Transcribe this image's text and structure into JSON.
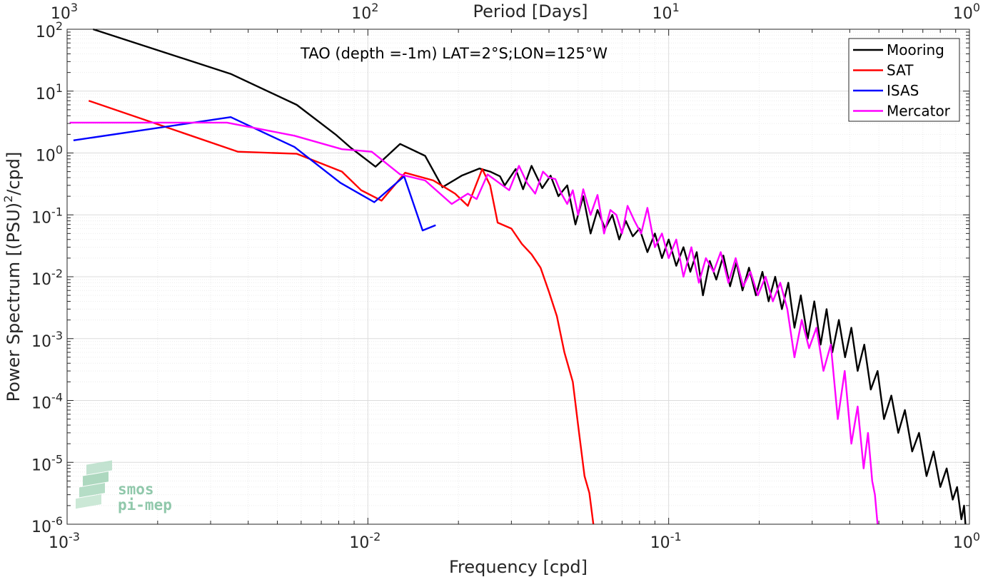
{
  "chart_data": {
    "type": "line",
    "title": "TAO (depth =-1m) LAT=2°S;LON=125°W",
    "xlabel": "Frequency [cpd]",
    "ylabel": "Power Spectrum [(PSU)²/cpd]",
    "ylabel_parts": {
      "pre": "Power Spectrum [(PSU)",
      "sup": "2",
      "post": "/cpd]"
    },
    "top_xlabel": "Period [Days]",
    "xscale": "log",
    "yscale": "log",
    "xlim": [
      0.001,
      1
    ],
    "ylim": [
      1e-06,
      100
    ],
    "grid": true,
    "legend_position": "top-right",
    "x_ticks": [
      {
        "value": 0.001,
        "base": "10",
        "exp": "-3"
      },
      {
        "value": 0.01,
        "base": "10",
        "exp": "-2"
      },
      {
        "value": 0.1,
        "base": "10",
        "exp": "-1"
      },
      {
        "value": 1,
        "base": "10",
        "exp": "0"
      }
    ],
    "top_ticks": [
      {
        "value": 0.001,
        "base": "10",
        "exp": "3"
      },
      {
        "value": 0.01,
        "base": "10",
        "exp": "2"
      },
      {
        "value": 0.1,
        "base": "10",
        "exp": "1"
      },
      {
        "value": 1,
        "base": "10",
        "exp": "0"
      }
    ],
    "y_ticks": [
      {
        "value": 100,
        "base": "10",
        "exp": "2"
      },
      {
        "value": 10,
        "base": "10",
        "exp": "1"
      },
      {
        "value": 1,
        "base": "10",
        "exp": "0"
      },
      {
        "value": 0.1,
        "base": "10",
        "exp": "-1"
      },
      {
        "value": 0.01,
        "base": "10",
        "exp": "-2"
      },
      {
        "value": 0.001,
        "base": "10",
        "exp": "-3"
      },
      {
        "value": 0.0001,
        "base": "10",
        "exp": "-4"
      },
      {
        "value": 1e-05,
        "base": "10",
        "exp": "-5"
      },
      {
        "value": 1e-06,
        "base": "10",
        "exp": "-6"
      }
    ],
    "series": [
      {
        "name": "Mooring",
        "color": "#000000",
        "points": [
          [
            0.00122,
            100
          ],
          [
            0.0035,
            19
          ],
          [
            0.0058,
            6
          ],
          [
            0.0078,
            2
          ],
          [
            0.0088,
            1.2
          ],
          [
            0.0106,
            0.6
          ],
          [
            0.0128,
            1.4
          ],
          [
            0.0155,
            0.9
          ],
          [
            0.0177,
            0.28
          ],
          [
            0.0205,
            0.43
          ],
          [
            0.0235,
            0.56
          ],
          [
            0.0255,
            0.5
          ],
          [
            0.0275,
            0.42
          ],
          [
            0.0285,
            0.3
          ],
          [
            0.031,
            0.55
          ],
          [
            0.0328,
            0.26
          ],
          [
            0.035,
            0.62
          ],
          [
            0.038,
            0.27
          ],
          [
            0.0405,
            0.43
          ],
          [
            0.043,
            0.2
          ],
          [
            0.046,
            0.3
          ],
          [
            0.049,
            0.07
          ],
          [
            0.052,
            0.2
          ],
          [
            0.055,
            0.05
          ],
          [
            0.058,
            0.12
          ],
          [
            0.0615,
            0.06
          ],
          [
            0.065,
            0.1
          ],
          [
            0.0685,
            0.04
          ],
          [
            0.072,
            0.08
          ],
          [
            0.076,
            0.045
          ],
          [
            0.08,
            0.06
          ],
          [
            0.085,
            0.025
          ],
          [
            0.09,
            0.05
          ],
          [
            0.095,
            0.02
          ],
          [
            0.1,
            0.04
          ],
          [
            0.106,
            0.015
          ],
          [
            0.112,
            0.03
          ],
          [
            0.118,
            0.012
          ],
          [
            0.124,
            0.025
          ],
          [
            0.13,
            0.005
          ],
          [
            0.137,
            0.018
          ],
          [
            0.144,
            0.009
          ],
          [
            0.152,
            0.022
          ],
          [
            0.16,
            0.007
          ],
          [
            0.168,
            0.017
          ],
          [
            0.176,
            0.006
          ],
          [
            0.185,
            0.014
          ],
          [
            0.195,
            0.005
          ],
          [
            0.205,
            0.012
          ],
          [
            0.215,
            0.004
          ],
          [
            0.226,
            0.01
          ],
          [
            0.238,
            0.003
          ],
          [
            0.25,
            0.008
          ],
          [
            0.262,
            0.0015
          ],
          [
            0.275,
            0.005
          ],
          [
            0.29,
            0.001
          ],
          [
            0.305,
            0.004
          ],
          [
            0.32,
            0.0008
          ],
          [
            0.335,
            0.003
          ],
          [
            0.35,
            0.0006
          ],
          [
            0.368,
            0.002
          ],
          [
            0.386,
            0.0005
          ],
          [
            0.405,
            0.0015
          ],
          [
            0.425,
            0.0003
          ],
          [
            0.447,
            0.0008
          ],
          [
            0.47,
            0.00015
          ],
          [
            0.495,
            0.0003
          ],
          [
            0.52,
            5e-05
          ],
          [
            0.55,
            0.00012
          ],
          [
            0.58,
            3e-05
          ],
          [
            0.61,
            7e-05
          ],
          [
            0.645,
            1.5e-05
          ],
          [
            0.68,
            3e-05
          ],
          [
            0.72,
            6e-06
          ],
          [
            0.76,
            1.5e-05
          ],
          [
            0.8,
            4e-06
          ],
          [
            0.84,
            8e-06
          ],
          [
            0.88,
            2.5e-06
          ],
          [
            0.91,
            4e-06
          ],
          [
            0.94,
            1.2e-06
          ],
          [
            0.96,
            2e-06
          ],
          [
            0.97,
            1e-06
          ]
        ]
      },
      {
        "name": "SAT",
        "color": "#ff0000",
        "points": [
          [
            0.00118,
            7
          ],
          [
            0.0037,
            1.05
          ],
          [
            0.0058,
            0.97
          ],
          [
            0.0082,
            0.5
          ],
          [
            0.0095,
            0.25
          ],
          [
            0.0111,
            0.17
          ],
          [
            0.0133,
            0.48
          ],
          [
            0.0165,
            0.36
          ],
          [
            0.0195,
            0.22
          ],
          [
            0.0215,
            0.14
          ],
          [
            0.024,
            0.55
          ],
          [
            0.0255,
            0.3
          ],
          [
            0.027,
            0.075
          ],
          [
            0.03,
            0.06
          ],
          [
            0.0325,
            0.034
          ],
          [
            0.035,
            0.023
          ],
          [
            0.0375,
            0.014
          ],
          [
            0.04,
            0.0057
          ],
          [
            0.0425,
            0.0023
          ],
          [
            0.045,
            0.0006
          ],
          [
            0.048,
            0.0002
          ],
          [
            0.05,
            4e-05
          ],
          [
            0.0525,
            6e-06
          ],
          [
            0.0545,
            3.2e-06
          ],
          [
            0.0562,
            1e-06
          ]
        ]
      },
      {
        "name": "ISAS",
        "color": "#0000ff",
        "points": [
          [
            0.00105,
            1.6
          ],
          [
            0.0035,
            3.8
          ],
          [
            0.0057,
            1.25
          ],
          [
            0.0081,
            0.33
          ],
          [
            0.0105,
            0.16
          ],
          [
            0.0132,
            0.42
          ],
          [
            0.0152,
            0.056
          ],
          [
            0.0168,
            0.068
          ]
        ]
      },
      {
        "name": "Mercator",
        "color": "#ff00ff",
        "points": [
          [
            0.00102,
            3.1
          ],
          [
            0.0034,
            3.1
          ],
          [
            0.0057,
            1.9
          ],
          [
            0.0082,
            1.15
          ],
          [
            0.0103,
            1.05
          ],
          [
            0.0128,
            0.45
          ],
          [
            0.0155,
            0.36
          ],
          [
            0.019,
            0.15
          ],
          [
            0.0215,
            0.22
          ],
          [
            0.023,
            0.18
          ],
          [
            0.025,
            0.45
          ],
          [
            0.0295,
            0.25
          ],
          [
            0.0318,
            0.62
          ],
          [
            0.0338,
            0.33
          ],
          [
            0.036,
            0.22
          ],
          [
            0.0382,
            0.5
          ],
          [
            0.04,
            0.4
          ],
          [
            0.042,
            0.38
          ],
          [
            0.044,
            0.22
          ],
          [
            0.046,
            0.15
          ],
          [
            0.048,
            0.25
          ],
          [
            0.05,
            0.1
          ],
          [
            0.052,
            0.26
          ],
          [
            0.055,
            0.1
          ],
          [
            0.058,
            0.21
          ],
          [
            0.061,
            0.05
          ],
          [
            0.064,
            0.12
          ],
          [
            0.067,
            0.1
          ],
          [
            0.07,
            0.05
          ],
          [
            0.073,
            0.14
          ],
          [
            0.077,
            0.08
          ],
          [
            0.081,
            0.05
          ],
          [
            0.085,
            0.13
          ],
          [
            0.09,
            0.03
          ],
          [
            0.095,
            0.05
          ],
          [
            0.1,
            0.02
          ],
          [
            0.106,
            0.04
          ],
          [
            0.112,
            0.01
          ],
          [
            0.119,
            0.03
          ],
          [
            0.126,
            0.008
          ],
          [
            0.133,
            0.02
          ],
          [
            0.141,
            0.012
          ],
          [
            0.149,
            0.025
          ],
          [
            0.158,
            0.008
          ],
          [
            0.167,
            0.02
          ],
          [
            0.177,
            0.007
          ],
          [
            0.187,
            0.012
          ],
          [
            0.198,
            0.005
          ],
          [
            0.21,
            0.01
          ],
          [
            0.222,
            0.004
          ],
          [
            0.235,
            0.008
          ],
          [
            0.248,
            0.003
          ],
          [
            0.262,
            0.0005
          ],
          [
            0.277,
            0.002
          ],
          [
            0.293,
            0.0007
          ],
          [
            0.31,
            0.0015
          ],
          [
            0.327,
            0.0003
          ],
          [
            0.346,
            0.0008
          ],
          [
            0.365,
            5e-05
          ],
          [
            0.385,
            0.0003
          ],
          [
            0.405,
            2e-05
          ],
          [
            0.425,
            8e-05
          ],
          [
            0.445,
            8e-06
          ],
          [
            0.46,
            3e-05
          ],
          [
            0.475,
            5e-06
          ],
          [
            0.485,
            3e-06
          ],
          [
            0.495,
            1e-06
          ]
        ]
      }
    ]
  },
  "logo": {
    "line1": "smos",
    "line2": "pi-mep"
  }
}
